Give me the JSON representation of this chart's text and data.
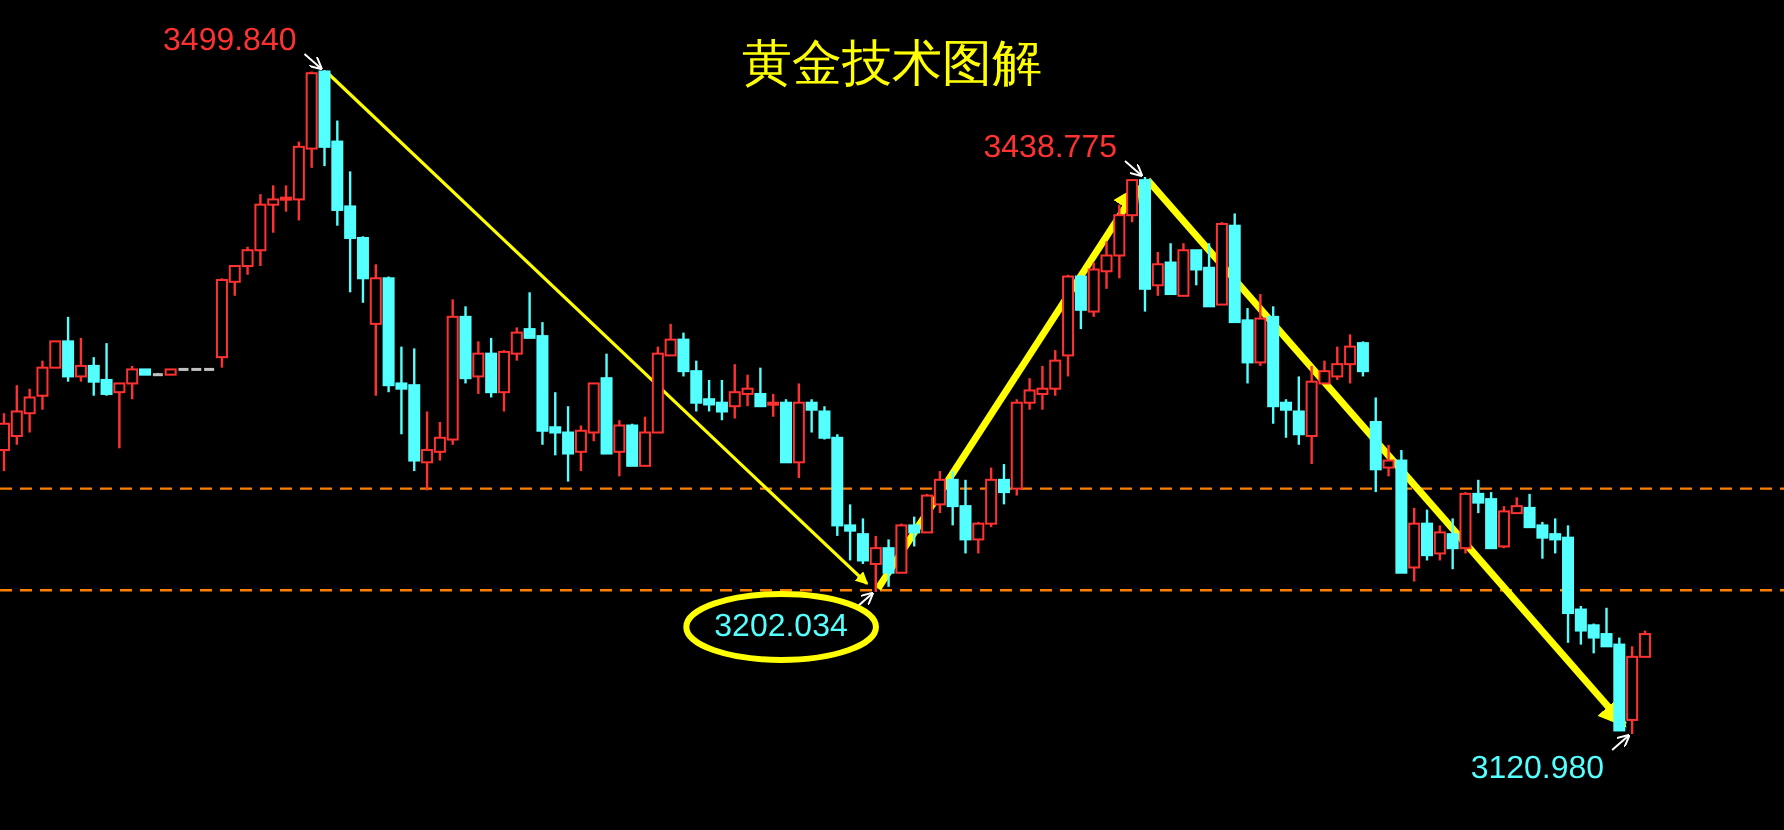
{
  "chart_data": {
    "type": "candlestick",
    "title": "黄金技术图解",
    "tick_labels": false,
    "categories": [
      null,
      null,
      null,
      null,
      null,
      null,
      null,
      null,
      null,
      null,
      null,
      null,
      null,
      null,
      null,
      null,
      null,
      null,
      null,
      null,
      null,
      null,
      null,
      null,
      null,
      null,
      null,
      null,
      null,
      null,
      null,
      null,
      null,
      null,
      null,
      null,
      null,
      null,
      null,
      null,
      null,
      null,
      null,
      null,
      null,
      null,
      null,
      null,
      null,
      null,
      null,
      null,
      null,
      null,
      null,
      null,
      null,
      null,
      null,
      null,
      null,
      null,
      null,
      null,
      null,
      null,
      null,
      null,
      null,
      null,
      null,
      null,
      null,
      null,
      null,
      null,
      null,
      null,
      null,
      null,
      null,
      null,
      null,
      null,
      null,
      null,
      null,
      null,
      null,
      null,
      null,
      null,
      null,
      null,
      null,
      null,
      null,
      null,
      null,
      null,
      null,
      null,
      null,
      null,
      null,
      null,
      null,
      null,
      null,
      null,
      null,
      null,
      null,
      null,
      null,
      null,
      null,
      null,
      null,
      null,
      null,
      null,
      null,
      null,
      null,
      null,
      null,
      null,
      null
    ],
    "ohlc": [
      [
        3283,
        3304,
        3271,
        3298
      ],
      [
        3291,
        3320,
        3286,
        3305
      ],
      [
        3304,
        3318,
        3293,
        3313
      ],
      [
        3314,
        3334,
        3306,
        3330
      ],
      [
        3330,
        3345,
        3330,
        3345
      ],
      [
        3345,
        3359,
        3322,
        3325
      ],
      [
        3325,
        3347,
        3322,
        3331
      ],
      [
        3331,
        3336,
        3314,
        3322
      ],
      [
        3323,
        3344,
        3314,
        3315
      ],
      [
        3316,
        3321,
        3284,
        3321
      ],
      [
        3321,
        3331,
        3312,
        3329
      ],
      [
        3329,
        3329,
        3326,
        3326
      ],
      [
        3326,
        3327,
        3326,
        3326
      ],
      [
        3326,
        3329,
        3326,
        3329
      ],
      [
        3329,
        3329,
        3329,
        3329
      ],
      [
        3329,
        3329,
        3329,
        3329
      ],
      [
        3329,
        3329,
        3329,
        3329
      ],
      [
        3336,
        3381,
        3330,
        3380
      ],
      [
        3379,
        3388,
        3371,
        3388
      ],
      [
        3388,
        3399,
        3383,
        3397
      ],
      [
        3397,
        3429,
        3388,
        3423
      ],
      [
        3423,
        3434,
        3407,
        3426
      ],
      [
        3426,
        3434,
        3419,
        3427
      ],
      [
        3426,
        3459,
        3414,
        3456
      ],
      [
        3455,
        3499,
        3444,
        3498
      ],
      [
        3499,
        3499.84,
        3445,
        3456
      ],
      [
        3459,
        3471,
        3411,
        3420
      ],
      [
        3422,
        3442,
        3373,
        3404
      ],
      [
        3404,
        3405,
        3367,
        3381
      ],
      [
        3355,
        3389,
        3314,
        3381
      ],
      [
        3381,
        3382,
        3316,
        3320
      ],
      [
        3321,
        3342,
        3292,
        3318
      ],
      [
        3320,
        3341,
        3271,
        3277
      ],
      [
        3276,
        3305,
        3260,
        3283
      ],
      [
        3282,
        3299,
        3277,
        3290
      ],
      [
        3289,
        3369,
        3286,
        3359
      ],
      [
        3359,
        3365,
        3321,
        3324
      ],
      [
        3325,
        3345,
        3315,
        3338
      ],
      [
        3338,
        3347,
        3313,
        3316
      ],
      [
        3316,
        3340,
        3305,
        3339
      ],
      [
        3338,
        3353,
        3334,
        3350
      ],
      [
        3352,
        3373,
        3347,
        3347
      ],
      [
        3348,
        3356,
        3286,
        3294
      ],
      [
        3296,
        3316,
        3280,
        3293
      ],
      [
        3293,
        3308,
        3265,
        3281
      ],
      [
        3282,
        3297,
        3271,
        3294
      ],
      [
        3293,
        3321,
        3288,
        3321
      ],
      [
        3324,
        3338,
        3281,
        3281
      ],
      [
        3282,
        3300,
        3268,
        3297
      ],
      [
        3297,
        3298,
        3274,
        3274
      ],
      [
        3274,
        3302,
        3274,
        3293
      ],
      [
        3293,
        3342,
        3293,
        3338
      ],
      [
        3337,
        3355,
        3337,
        3346
      ],
      [
        3346,
        3350,
        3325,
        3328
      ],
      [
        3328,
        3334,
        3305,
        3310
      ],
      [
        3312,
        3323,
        3305,
        3309
      ],
      [
        3310,
        3323,
        3300,
        3305
      ],
      [
        3308,
        3332,
        3301,
        3316
      ],
      [
        3315,
        3326,
        3308,
        3318
      ],
      [
        3315,
        3330,
        3308,
        3308
      ],
      [
        3309,
        3315,
        3302,
        3310
      ],
      [
        3310,
        3312,
        3276,
        3276
      ],
      [
        3276,
        3321,
        3267,
        3310
      ],
      [
        3310,
        3312,
        3293,
        3306
      ],
      [
        3305,
        3308,
        3289,
        3290
      ],
      [
        3290,
        3292,
        3234,
        3240
      ],
      [
        3240,
        3252,
        3220,
        3237
      ],
      [
        3235,
        3244,
        3218,
        3220
      ],
      [
        3218,
        3234,
        3202.034,
        3227
      ],
      [
        3227,
        3232,
        3205,
        3213
      ],
      [
        3213,
        3241,
        3213,
        3240
      ],
      [
        3240,
        3245,
        3228,
        3236
      ],
      [
        3236,
        3258,
        3236,
        3257
      ],
      [
        3252,
        3271,
        3247,
        3266
      ],
      [
        3266,
        3271,
        3240,
        3251
      ],
      [
        3251,
        3266,
        3224,
        3232
      ],
      [
        3232,
        3242,
        3224,
        3241
      ],
      [
        3241,
        3273,
        3239,
        3266
      ],
      [
        3266,
        3275,
        3252,
        3259
      ],
      [
        3261,
        3312,
        3257,
        3310
      ],
      [
        3310,
        3324,
        3306,
        3317
      ],
      [
        3315,
        3331,
        3306,
        3318
      ],
      [
        3318,
        3340,
        3314,
        3334
      ],
      [
        3337,
        3383,
        3325,
        3382
      ],
      [
        3382,
        3383,
        3352,
        3363
      ],
      [
        3362,
        3390,
        3359,
        3386
      ],
      [
        3385,
        3402,
        3375,
        3394
      ],
      [
        3394,
        3423,
        3381,
        3417
      ],
      [
        3417,
        3437,
        3413,
        3437
      ],
      [
        3437,
        3438.775,
        3362,
        3375
      ],
      [
        3377,
        3396,
        3371,
        3389
      ],
      [
        3390,
        3401,
        3372,
        3372
      ],
      [
        3371,
        3401,
        3371,
        3397
      ],
      [
        3397,
        3397,
        3377,
        3386
      ],
      [
        3387,
        3401,
        3365,
        3365
      ],
      [
        3366,
        3413,
        3366,
        3412
      ],
      [
        3411,
        3418,
        3356,
        3356
      ],
      [
        3357,
        3364,
        3321,
        3333
      ],
      [
        3333,
        3372,
        3331,
        3358
      ],
      [
        3359,
        3365,
        3298,
        3308
      ],
      [
        3310,
        3312,
        3290,
        3306
      ],
      [
        3305,
        3325,
        3286,
        3292
      ],
      [
        3291,
        3331,
        3275,
        3322
      ],
      [
        3321,
        3334,
        3321,
        3328
      ],
      [
        3325,
        3342,
        3323,
        3332
      ],
      [
        3332,
        3349,
        3321,
        3342
      ],
      [
        3344,
        3345,
        3325,
        3328
      ],
      [
        3299,
        3313,
        3259,
        3272
      ],
      [
        3273,
        3286,
        3268,
        3277
      ],
      [
        3277,
        3283,
        3213,
        3213
      ],
      [
        3216,
        3250,
        3208,
        3241
      ],
      [
        3241,
        3249,
        3220,
        3223
      ],
      [
        3224,
        3240,
        3220,
        3236
      ],
      [
        3235,
        3244,
        3215,
        3227
      ],
      [
        3227,
        3259,
        3224,
        3258
      ],
      [
        3258,
        3266,
        3247,
        3253
      ],
      [
        3255,
        3259,
        3227,
        3227
      ],
      [
        3228,
        3251,
        3227,
        3248
      ],
      [
        3247,
        3256,
        3247,
        3251
      ],
      [
        3250,
        3258,
        3239,
        3239
      ],
      [
        3240,
        3242,
        3221,
        3233
      ],
      [
        3235,
        3244,
        3224,
        3232
      ],
      [
        3233,
        3240,
        3173,
        3190
      ],
      [
        3192,
        3194,
        3172,
        3180
      ],
      [
        3183,
        3184,
        3167,
        3176
      ],
      [
        3178,
        3193,
        3171,
        3171
      ],
      [
        3172,
        3176,
        3123,
        3123
      ],
      [
        3129,
        3171,
        3120.98,
        3165
      ],
      [
        3165,
        3180,
        3165,
        3178
      ]
    ],
    "colors": [
      "#ff3232",
      "#ff3232",
      "#ff3232",
      "#ff3232",
      "#ff3232",
      "#54ffff",
      "#ff3232",
      "#54ffff",
      "#54ffff",
      "#ff3232",
      "#ff3232",
      "#54ffff",
      "#c0c0c0",
      "#ff3232",
      "#c0c0c0",
      "#c0c0c0",
      "#c0c0c0",
      "#ff3232",
      "#ff3232",
      "#ff3232",
      "#ff3232",
      "#ff3232",
      "#ff3232",
      "#ff3232",
      "#ff3232",
      "#54ffff",
      "#54ffff",
      "#54ffff",
      "#54ffff",
      "#ff3232",
      "#54ffff",
      "#54ffff",
      "#54ffff",
      "#ff3232",
      "#ff3232",
      "#ff3232",
      "#54ffff",
      "#ff3232",
      "#54ffff",
      "#ff3232",
      "#ff3232",
      "#54ffff",
      "#54ffff",
      "#54ffff",
      "#54ffff",
      "#ff3232",
      "#ff3232",
      "#54ffff",
      "#ff3232",
      "#54ffff",
      "#ff3232",
      "#ff3232",
      "#ff3232",
      "#54ffff",
      "#54ffff",
      "#54ffff",
      "#54ffff",
      "#ff3232",
      "#ff3232",
      "#54ffff",
      "#ff3232",
      "#54ffff",
      "#ff3232",
      "#54ffff",
      "#54ffff",
      "#54ffff",
      "#54ffff",
      "#54ffff",
      "#ff3232",
      "#54ffff",
      "#ff3232",
      "#54ffff",
      "#ff3232",
      "#ff3232",
      "#54ffff",
      "#54ffff",
      "#ff3232",
      "#ff3232",
      "#54ffff",
      "#ff3232",
      "#ff3232",
      "#ff3232",
      "#ff3232",
      "#ff3232",
      "#54ffff",
      "#ff3232",
      "#ff3232",
      "#ff3232",
      "#ff3232",
      "#54ffff",
      "#ff3232",
      "#54ffff",
      "#ff3232",
      "#54ffff",
      "#54ffff",
      "#ff3232",
      "#54ffff",
      "#54ffff",
      "#ff3232",
      "#54ffff",
      "#54ffff",
      "#54ffff",
      "#ff3232",
      "#ff3232",
      "#ff3232",
      "#ff3232",
      "#54ffff",
      "#54ffff",
      "#ff3232",
      "#54ffff",
      "#ff3232",
      "#54ffff",
      "#ff3232",
      "#54ffff",
      "#ff3232",
      "#54ffff",
      "#54ffff",
      "#ff3232",
      "#ff3232",
      "#54ffff",
      "#54ffff",
      "#54ffff",
      "#54ffff",
      "#54ffff",
      "#54ffff",
      "#54ffff",
      "#54ffff",
      "#ff3232",
      "#ff3232"
    ],
    "ref_lines": [
      {
        "axis": "y",
        "value": 3261,
        "color": "#ff8000",
        "line_style": "dashed"
      },
      {
        "axis": "y",
        "value": 3203,
        "color": "#ff8000",
        "line_style": "dashed"
      }
    ],
    "annotations": [
      "3499.840",
      "3202.034",
      "3438.775",
      "3120.980"
    ]
  }
}
